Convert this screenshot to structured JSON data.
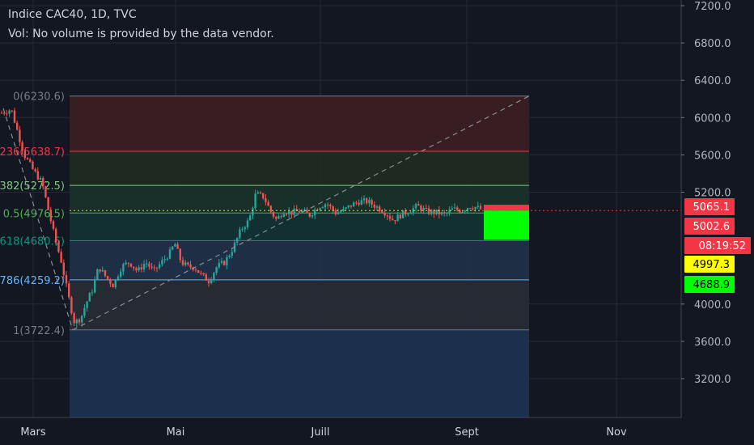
{
  "header": {
    "title": "Indice CAC40, 1D, TVC",
    "volume_note": "Vol: No volume is provided by the data vendor."
  },
  "chart_data": {
    "type": "candlestick",
    "x_ticks": [
      "Mars",
      "Mai",
      "Juill",
      "Sept",
      "Nov"
    ],
    "y_ticks": [
      "7200.0",
      "6800.0",
      "6400.0",
      "6000.0",
      "5600.0",
      "5200.0",
      "4000.0",
      "3600.0",
      "3200.0"
    ],
    "ylim": [
      2850,
      7300
    ],
    "fib_levels": [
      {
        "label": "0(6230.6)",
        "value": 6230.6,
        "color": "#787b86",
        "fill": "#3a1e24"
      },
      {
        "label": "236(5638.7)",
        "value": 5638.7,
        "color": "#f23645",
        "fill": "#1f2b22"
      },
      {
        "label": "382(5272.5)",
        "value": 5272.5,
        "color": "#81c784",
        "fill": "#19302b"
      },
      {
        "label": "0.5(4976.5)",
        "value": 4976.5,
        "color": "#4caf50",
        "fill": "#123233"
      },
      {
        "label": "618(4680.6)",
        "value": 4680.6,
        "color": "#089981",
        "fill": "#1f3048"
      },
      {
        "label": "786(4259.2)",
        "value": 4259.2,
        "color": "#64b5f6",
        "fill": "#262b35"
      },
      {
        "label": "1(3722.4)",
        "value": 3722.4,
        "color": "#787b86",
        "fill": "#1c3150"
      }
    ],
    "price_labels": [
      {
        "value": "5065.1",
        "bg": "#f23645",
        "fg": "#ffffff"
      },
      {
        "value": "5002.6",
        "bg": "#f23645",
        "fg": "#ffffff"
      },
      {
        "value": "08:19:52",
        "bg": "#f23645",
        "fg": "#ffffff"
      },
      {
        "value": "4997.3",
        "bg": "#ffff00",
        "fg": "#000000"
      },
      {
        "value": "4688.9",
        "bg": "#00ff00",
        "fg": "#000000"
      }
    ],
    "colors": {
      "up": "#26a69a",
      "down": "#ef5350",
      "background": "#131722",
      "stop": "#f23645",
      "target": "#00ff00"
    }
  }
}
